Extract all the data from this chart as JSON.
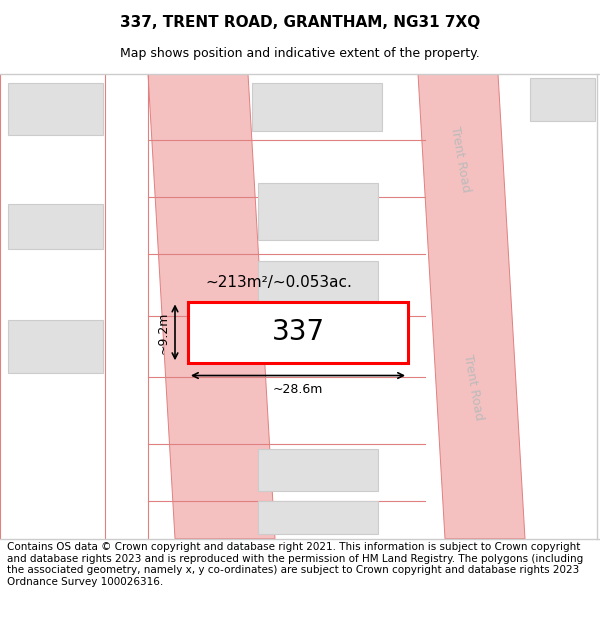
{
  "title_line1": "337, TRENT ROAD, GRANTHAM, NG31 7XQ",
  "title_line2": "Map shows position and indicative extent of the property.",
  "footer_text": "Contains OS data © Crown copyright and database right 2021. This information is subject to Crown copyright and database rights 2023 and is reproduced with the permission of HM Land Registry. The polygons (including the associated geometry, namely x, y co-ordinates) are subject to Crown copyright and database rights 2023 Ordnance Survey 100026316.",
  "map_bg": "#ffffff",
  "road_color": "#f5c0c0",
  "road_border_color": "#e08080",
  "building_fill": "#e0e0e0",
  "building_border": "#cccccc",
  "highlight_border": "#ff0000",
  "road_label_color": "#bbbbbb",
  "title_fontsize": 11,
  "subtitle_fontsize": 9,
  "footer_fontsize": 7.5
}
